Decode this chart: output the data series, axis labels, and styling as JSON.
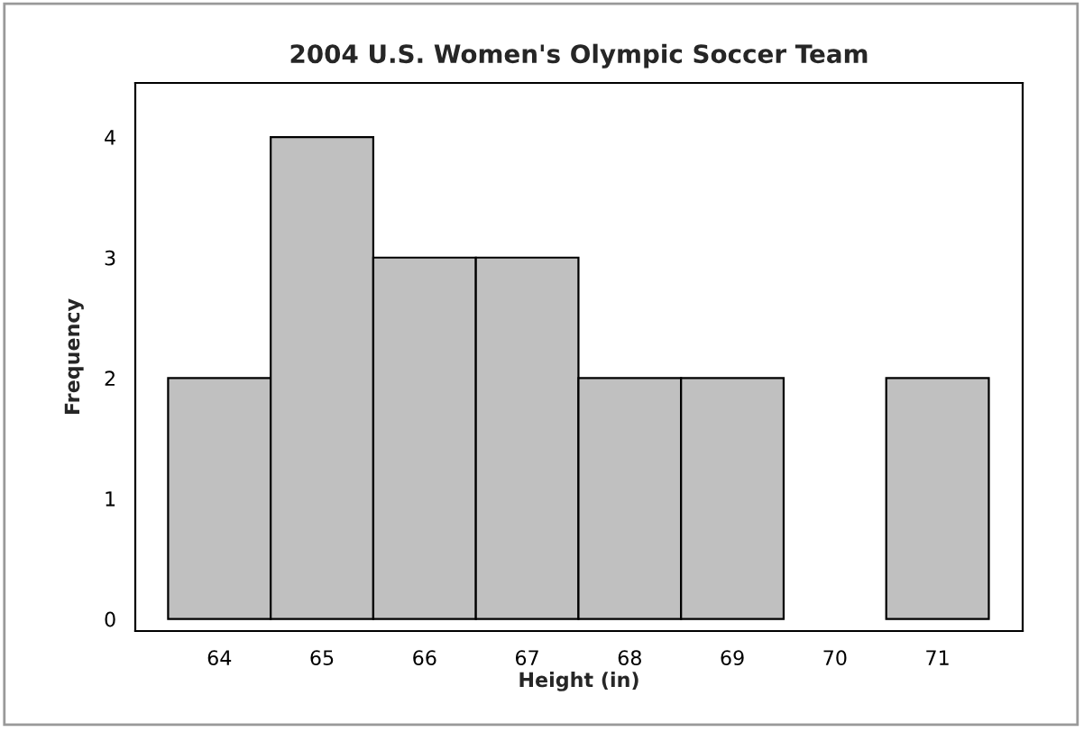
{
  "chart_data": {
    "type": "histogram",
    "title": "2004 U.S. Women's Olympic Soccer Team",
    "xlabel": "Height (in)",
    "ylabel": "Frequency",
    "bins": [
      63.5,
      64.5,
      65.5,
      66.5,
      67.5,
      68.5,
      69.5,
      70.5,
      71.5
    ],
    "values": [
      2,
      4,
      3,
      3,
      2,
      2,
      0,
      2
    ],
    "color": "#c0c0c0",
    "xlim": [
      63.18,
      71.83
    ],
    "xticks": [
      64,
      65,
      66,
      67,
      68,
      69,
      70,
      71
    ],
    "ylim": [
      -0.1,
      4.45
    ],
    "yticks": [
      0,
      1,
      2,
      3,
      4
    ],
    "grid": false,
    "legend": false
  }
}
